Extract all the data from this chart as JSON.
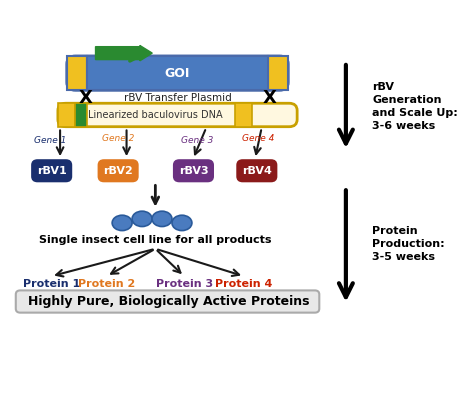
{
  "bg_color": "#ffffff",
  "title_text": "Highly Pure, Biologically Active Proteins",
  "title_bg": "#e8e8e8",
  "title_color": "#000000",
  "rbv_labels": [
    "rBV1",
    "rBV2",
    "rBV3",
    "rBV4"
  ],
  "rbv_colors": [
    "#1a2f6e",
    "#e07820",
    "#6a3080",
    "#8b1a1a"
  ],
  "gene_labels": [
    "Gene 1",
    "Gene 2",
    "Gene 3",
    "Gene 4"
  ],
  "gene_colors": [
    "#1a2f6e",
    "#e07820",
    "#6a3080",
    "#cc2200"
  ],
  "protein_labels": [
    "Protein 1",
    "Protein 2",
    "Protein 3",
    "Protein 4"
  ],
  "protein_colors": [
    "#1a2f6e",
    "#e07820",
    "#6a3080",
    "#cc2200"
  ],
  "right_text1": "rBV\nGeneration\nand Scale Up:\n3-6 weeks",
  "right_text2": "Protein\nProduction:\n3-5 weeks",
  "cell_line_text": "Single insect cell line for all products",
  "plasmid_text": "rBV Transfer Plasmid",
  "goi_text": "GOI",
  "baculovirus_text": "Linearized baculovirus DNA",
  "cell_color": "#4a7bbf",
  "arrow_color": "#1a1a1a",
  "plasmid_border": "#4a6aaa",
  "plasmid_fill": "#dde8f8",
  "goi_fill": "#4a7abf",
  "yellow_fill": "#f0c020",
  "green_fill": "#2a8a30",
  "bac_border": "#c8a000",
  "bac_fill": "#fff8e0"
}
